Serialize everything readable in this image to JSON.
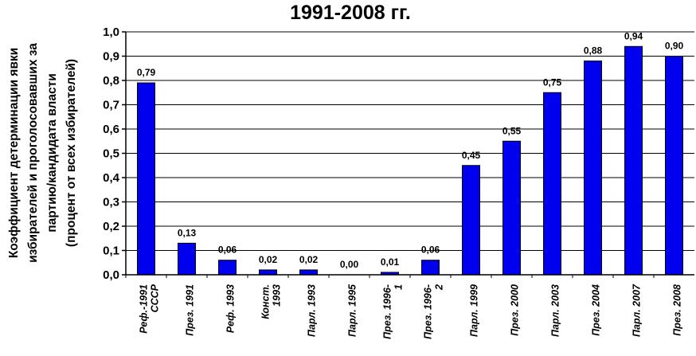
{
  "chart_data": {
    "type": "bar",
    "title": "1991-2008 гг.",
    "ylabel_lines": [
      "Коэффициент детерминации явки",
      "избирателей и проголосовавших за",
      "партию/кандидата власти",
      "(процент от всех избирателей)"
    ],
    "xlabel": "",
    "ylim": [
      0,
      1.0
    ],
    "yticks": [
      "0,0",
      "0,1",
      "0,2",
      "0,3",
      "0,4",
      "0,5",
      "0,6",
      "0,7",
      "0,8",
      "0,9",
      "1,0"
    ],
    "categories": [
      [
        "Реф.-1991",
        "СССР"
      ],
      [
        "През. 1991"
      ],
      [
        "Реф. 1993"
      ],
      [
        "Конст.",
        "1993"
      ],
      [
        "Парл. 1993"
      ],
      [
        "Парл. 1995"
      ],
      [
        "През. 1996-",
        "1"
      ],
      [
        "През. 1996-",
        "2"
      ],
      [
        "Парл. 1999"
      ],
      [
        "През. 2000"
      ],
      [
        "Парл. 2003"
      ],
      [
        "През. 2004"
      ],
      [
        "Парл. 2007"
      ],
      [
        "През. 2008"
      ]
    ],
    "values": [
      0.79,
      0.13,
      0.06,
      0.02,
      0.02,
      0.0,
      0.01,
      0.06,
      0.45,
      0.55,
      0.75,
      0.88,
      0.94,
      0.9
    ],
    "data_labels": [
      "0,79",
      "0,13",
      "0,06",
      "0,02",
      "0,02",
      "0,00",
      "0,01",
      "0,06",
      "0,45",
      "0,55",
      "0,75",
      "0,88",
      "0,94",
      "0,90"
    ],
    "bar_color": "#0000ee",
    "grid": true,
    "legend": "none"
  }
}
